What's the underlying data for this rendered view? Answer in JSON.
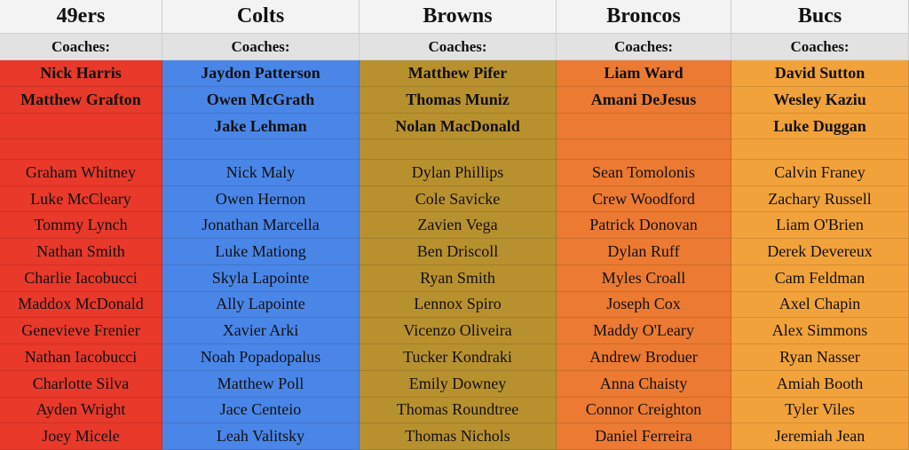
{
  "teams": [
    {
      "name": "49ers",
      "color": "#e8392b",
      "coaches_label": "Coaches:",
      "coaches": [
        "Nick Harris",
        "Matthew Grafton"
      ],
      "players": [
        "Graham Whitney",
        "Luke McCleary",
        "Tommy Lynch",
        "Nathan Smith",
        "Charlie Iacobucci",
        "Maddox McDonald",
        "Genevieve Frenier",
        "Nathan Iacobucci",
        "Charlotte Silva",
        "Ayden Wright",
        "Joey Micele"
      ]
    },
    {
      "name": "Colts",
      "color": "#4a86e8",
      "coaches_label": "Coaches:",
      "coaches": [
        "Jaydon Patterson",
        "Owen McGrath",
        "Jake Lehman"
      ],
      "players": [
        "Nick Maly",
        "Owen Hernon",
        "Jonathan Marcella",
        "Luke Mationg",
        "Skyla Lapointe",
        "Ally Lapointe",
        "Xavier Arki",
        "Noah Popadopalus",
        "Matthew Poll",
        "Jace Centeio",
        "Leah Valitsky"
      ]
    },
    {
      "name": "Browns",
      "color": "#b8912f",
      "coaches_label": "Coaches:",
      "coaches": [
        "Matthew Pifer",
        "Thomas Muniz",
        "Nolan MacDonald"
      ],
      "players": [
        "Dylan Phillips",
        "Cole Savicke",
        "Zavien Vega",
        "Ben Driscoll",
        "Ryan Smith",
        "Lennox Spiro",
        "Vicenzo Oliveira",
        "Tucker Kondraki",
        "Emily Downey",
        "Thomas Roundtree",
        "Thomas Nichols"
      ]
    },
    {
      "name": "Broncos",
      "color": "#ec7a32",
      "coaches_label": "Coaches:",
      "coaches": [
        "Liam Ward",
        "Amani DeJesus"
      ],
      "players": [
        "Sean Tomolonis",
        "Crew Woodford",
        "Patrick Donovan",
        "Dylan Ruff",
        "Myles Croall",
        "Joseph Cox",
        "Maddy O'Leary",
        "Andrew Broduer",
        "Anna Chaisty",
        "Connor Creighton",
        "Daniel Ferreira"
      ]
    },
    {
      "name": "Bucs",
      "color": "#f2a23a",
      "coaches_label": "Coaches:",
      "coaches": [
        "David Sutton",
        "Wesley Kaziu",
        "Luke Duggan"
      ],
      "players": [
        "Calvin Franey",
        "Zachary Russell",
        "Liam O'Brien",
        "Derek Devereux",
        "Cam Feldman",
        "Axel Chapin",
        "Alex Simmons",
        "Ryan Nasser",
        "Amiah Booth",
        "Tyler Viles",
        "Jeremiah Jean"
      ]
    }
  ]
}
